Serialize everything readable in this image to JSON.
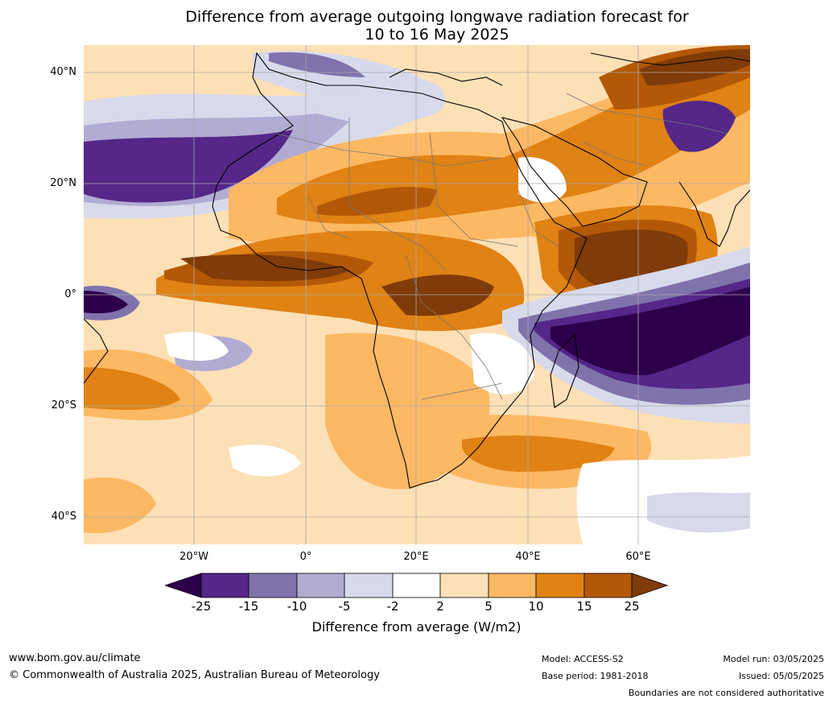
{
  "title": {
    "line1": "Difference from average outgoing longwave radiation forecast for",
    "line2": "10 to 16 May 2025"
  },
  "map": {
    "region": "Africa, Indian Ocean and Middle East",
    "lat_labels": [
      "40°N",
      "20°N",
      "0°",
      "20°S",
      "40°S"
    ],
    "lon_labels": [
      "20°W",
      "0°",
      "20°E",
      "40°E",
      "60°E"
    ]
  },
  "colorbar": {
    "ticks": [
      "-25",
      "-15",
      "-10",
      "-5",
      "-2",
      "2",
      "5",
      "10",
      "15",
      "25"
    ],
    "colors": {
      "lt_-25": "#2d004b",
      "-25_-15": "#542788",
      "-15_-10": "#8073ac",
      "-10_-5": "#b2abd2",
      "-5_-2": "#d8daeb",
      "-2_2": "#ffffff",
      "2_5": "#fee0b6",
      "5_10": "#fdb863",
      "10_15": "#e08214",
      "15_25": "#b35806",
      "gt_25": "#7f3b08"
    },
    "label": "Difference from average (W/m2)"
  },
  "footer": {
    "url": "www.bom.gov.au/climate",
    "copyright": "© Commonwealth of Australia 2025, Australian Bureau of Meteorology",
    "model": "Model: ACCESS-S2",
    "base_period": "Base period: 1981-2018",
    "model_run": "Model run: 03/05/2025",
    "issued": "Issued: 05/05/2025",
    "disclaimer": "Boundaries are not considered authoritative"
  }
}
